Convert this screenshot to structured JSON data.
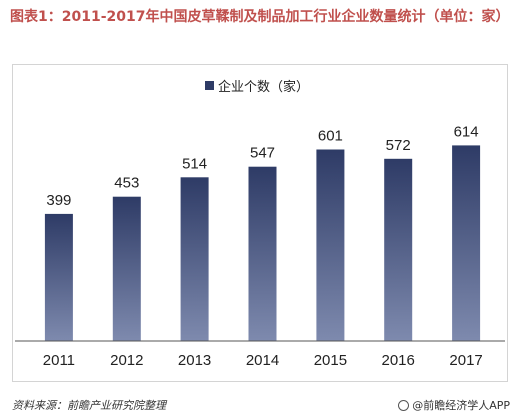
{
  "title": "图表1：2011-2017年中国皮草鞣制及制品加工行业企业数量统计（单位：家）",
  "source": "资料来源：前瞻产业研究院整理",
  "brand": "@前瞻经济学人APP",
  "colors": {
    "bar": "#2e3b66",
    "bar_light": "#7e8aae",
    "axis": "#555555",
    "text": "#222222",
    "title": "#c0504d"
  },
  "chart_data": {
    "type": "bar",
    "legend": {
      "label": "企业个数（家）",
      "placement": "top-center"
    },
    "categories": [
      "2011",
      "2012",
      "2013",
      "2014",
      "2015",
      "2016",
      "2017"
    ],
    "series": [
      {
        "name": "企业个数（家）",
        "values": [
          399,
          453,
          514,
          547,
          601,
          572,
          614
        ]
      }
    ],
    "data_labels": [
      "399",
      "453",
      "514",
      "547",
      "601",
      "572",
      "614"
    ],
    "ylim": [
      0,
      700
    ],
    "grid": false
  }
}
